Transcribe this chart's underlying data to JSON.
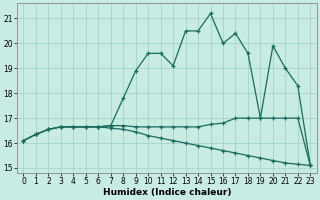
{
  "xlabel": "Humidex (Indice chaleur)",
  "bg_color": "#c8ebe3",
  "grid_color": "#9dcfc4",
  "line_color": "#1a6b5a",
  "spine_color": "#888888",
  "xlim": [
    -0.5,
    23.5
  ],
  "ylim": [
    14.8,
    21.6
  ],
  "yticks": [
    15,
    16,
    17,
    18,
    19,
    20,
    21
  ],
  "xticks": [
    0,
    1,
    2,
    3,
    4,
    5,
    6,
    7,
    8,
    9,
    10,
    11,
    12,
    13,
    14,
    15,
    16,
    17,
    18,
    19,
    20,
    21,
    22,
    23
  ],
  "line1_x": [
    0,
    1,
    2,
    3,
    4,
    5,
    6,
    7,
    8,
    9,
    10,
    11,
    12,
    13,
    14,
    15,
    16,
    17,
    18,
    19,
    20,
    21,
    22,
    23
  ],
  "line1_y": [
    16.1,
    16.35,
    16.55,
    16.65,
    16.65,
    16.65,
    16.65,
    16.7,
    17.8,
    18.9,
    19.6,
    19.6,
    19.1,
    20.5,
    20.5,
    21.2,
    20.0,
    20.4,
    19.6,
    17.0,
    19.9,
    19.0,
    18.3,
    15.1
  ],
  "line2_x": [
    0,
    1,
    2,
    3,
    4,
    5,
    6,
    7,
    8,
    9,
    10,
    11,
    12,
    13,
    14,
    15,
    16,
    17,
    18,
    19,
    20,
    21,
    22,
    23
  ],
  "line2_y": [
    16.1,
    16.35,
    16.55,
    16.65,
    16.65,
    16.65,
    16.65,
    16.7,
    16.7,
    16.65,
    16.65,
    16.65,
    16.65,
    16.65,
    16.65,
    16.75,
    16.8,
    17.0,
    17.0,
    17.0,
    17.0,
    17.0,
    17.0,
    15.1
  ],
  "line3_x": [
    0,
    1,
    2,
    3,
    4,
    5,
    6,
    7,
    8,
    9,
    10,
    11,
    12,
    13,
    14,
    15,
    16,
    17,
    18,
    19,
    20,
    21,
    22,
    23
  ],
  "line3_y": [
    16.1,
    16.35,
    16.55,
    16.65,
    16.65,
    16.65,
    16.65,
    16.6,
    16.55,
    16.45,
    16.3,
    16.2,
    16.1,
    16.0,
    15.9,
    15.8,
    15.7,
    15.6,
    15.5,
    15.4,
    15.3,
    15.2,
    15.15,
    15.1
  ],
  "xlabel_fontsize": 6.5,
  "tick_fontsize": 5.5,
  "linewidth": 0.9,
  "markersize": 3.5
}
